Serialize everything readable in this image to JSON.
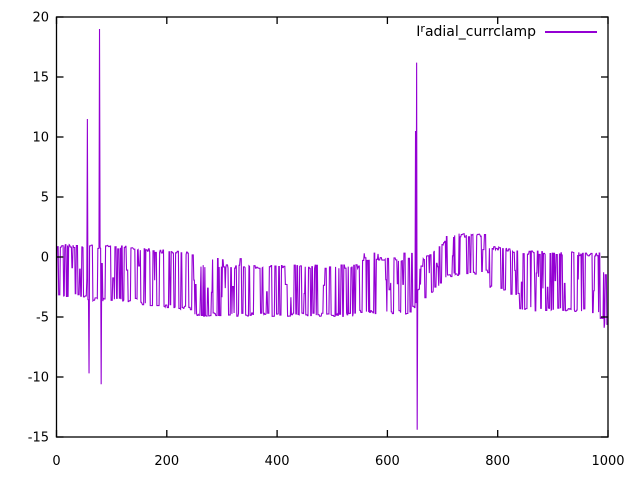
{
  "chart_data": {
    "type": "line",
    "title": "",
    "xlabel": "",
    "ylabel": "",
    "xlim": [
      0,
      1000
    ],
    "ylim": [
      -15,
      20
    ],
    "x_ticks": [
      0,
      200,
      400,
      600,
      800,
      1000
    ],
    "y_ticks": [
      -15,
      -10,
      -5,
      0,
      5,
      10,
      15,
      20
    ],
    "grid": false,
    "legend_position": "top-right-inside",
    "line_color": "#9400d3",
    "border_color": "#000000",
    "series_name": "Iradial_currclamp",
    "legend": {
      "base": "I",
      "sup": "r",
      "rest": "adial_currclamp"
    },
    "description": "Dense square-wave-like noisy signal oscillating in a band, with isolated tall spikes near x=56-81 and x=651-654, and a raised bump around x=705-785.",
    "band_segments": [
      {
        "x0": 0,
        "x1": 55,
        "hi0": 0.9,
        "hi1": 0.9,
        "lo0": -3.2,
        "lo1": -3.2
      },
      {
        "x0": 55,
        "x1": 150,
        "hi0": 0.9,
        "hi1": 0.7,
        "lo0": -3.5,
        "lo1": -3.6
      },
      {
        "x0": 150,
        "x1": 250,
        "hi0": 0.6,
        "hi1": 0.3,
        "lo0": -3.9,
        "lo1": -4.3
      },
      {
        "x0": 250,
        "x1": 550,
        "hi0": -0.8,
        "hi1": -0.8,
        "lo0": -4.8,
        "lo1": -4.8,
        "occ_hi": -0.2,
        "occ_p": 0.06
      },
      {
        "x0": 550,
        "x1": 645,
        "hi0": -0.2,
        "hi1": -0.2,
        "lo0": -4.6,
        "lo1": -4.6,
        "occ_hi": 0.4,
        "occ_p": 0.08
      },
      {
        "x0": 645,
        "x1": 665,
        "hi0": -1.0,
        "hi1": -0.8,
        "lo0": -4.2,
        "lo1": -3.6
      },
      {
        "x0": 665,
        "x1": 705,
        "hi0": -0.1,
        "hi1": 1.2,
        "lo0": -3.6,
        "lo1": -1.8
      },
      {
        "x0": 705,
        "x1": 785,
        "hi0": 1.8,
        "hi1": 1.8,
        "lo0": -1.6,
        "lo1": -1.2,
        "occ_hi": 1.9,
        "occ_p": 0.1
      },
      {
        "x0": 785,
        "x1": 840,
        "hi0": 0.8,
        "hi1": 0.4,
        "lo0": -2.4,
        "lo1": -3.2
      },
      {
        "x0": 840,
        "x1": 985,
        "hi0": 0.4,
        "hi1": 0.2,
        "lo0": -4.3,
        "lo1": -4.5
      },
      {
        "x0": 985,
        "x1": 1001,
        "hi0": -0.5,
        "hi1": -2.0,
        "lo0": -5.0,
        "lo1": -5.8
      }
    ],
    "spikes": [
      {
        "x": 56,
        "v": 11.5
      },
      {
        "x": 59,
        "v": -9.7
      },
      {
        "x": 78,
        "v": 19.0
      },
      {
        "x": 81,
        "v": -10.6
      },
      {
        "x": 651,
        "v": 10.5
      },
      {
        "x": 653,
        "v": 16.2
      },
      {
        "x": 654,
        "v": -14.4
      },
      {
        "x": 993,
        "v": -5.9
      }
    ]
  }
}
